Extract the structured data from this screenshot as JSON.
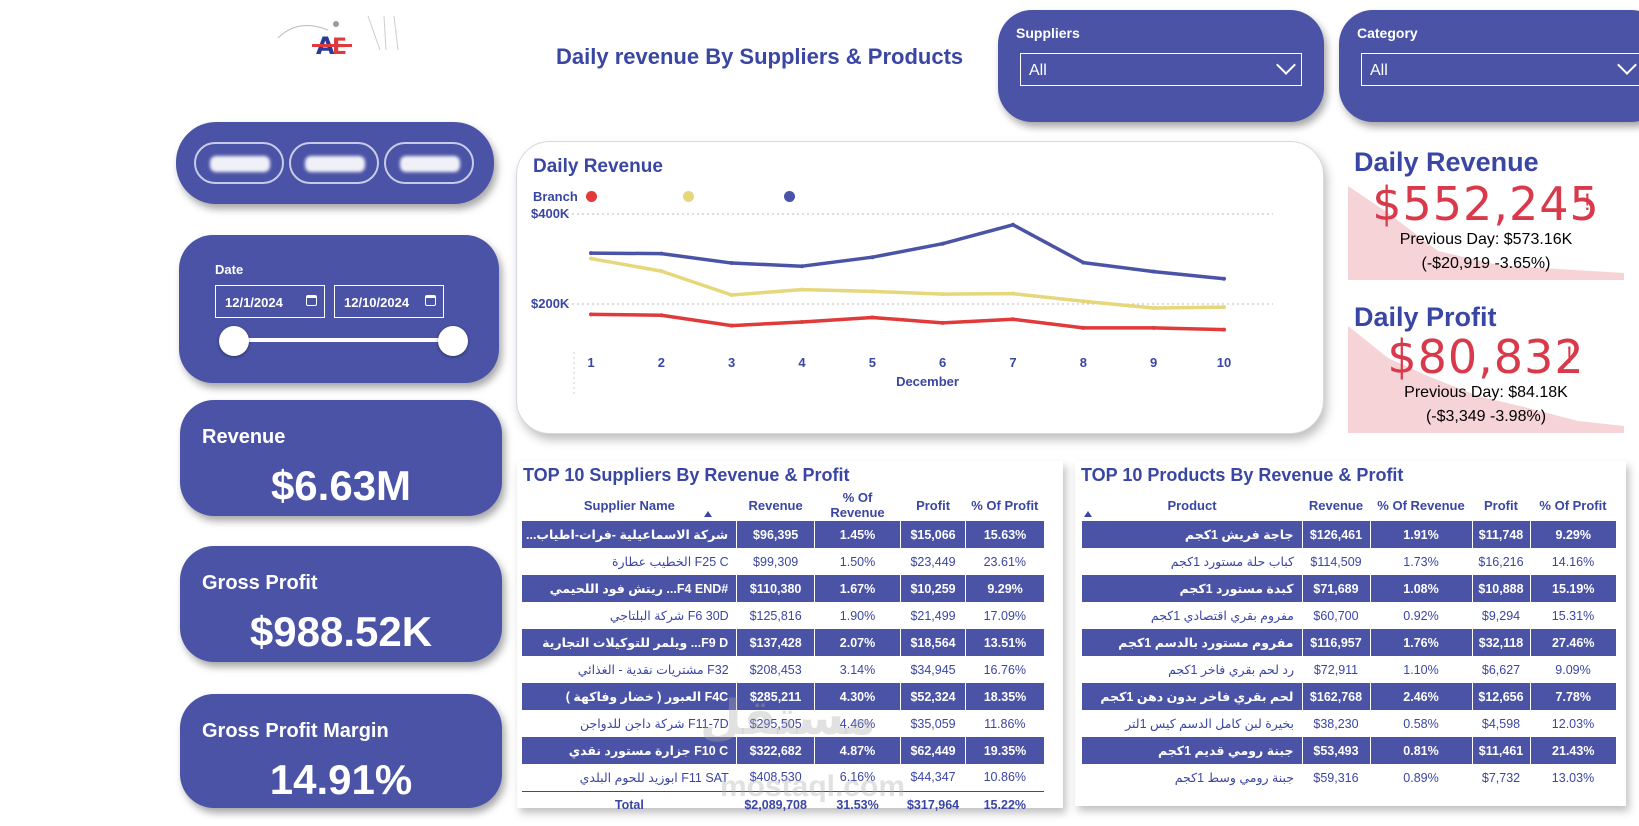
{
  "header": {
    "title": "Daily revenue By Suppliers & Products"
  },
  "filters": {
    "suppliers": {
      "label": "Suppliers",
      "value": "All"
    },
    "category": {
      "label": "Category",
      "value": "All"
    },
    "date": {
      "label": "Date",
      "start": "12/1/2024",
      "end": "12/10/2024",
      "slider_start": 0,
      "slider_end": 1
    }
  },
  "kpis": {
    "revenue": {
      "label": "Revenue",
      "value": "$6.63M"
    },
    "gross_profit": {
      "label": "Gross Profit",
      "value": "$988.52K"
    },
    "gross_profit_margin": {
      "label": "Gross Profit Margin",
      "value": "14.91%"
    }
  },
  "daily_revenue_card": {
    "title": "Daily Revenue",
    "value": "$552,245",
    "indicator": "!",
    "previous": "Previous Day: $573.16K",
    "change": "(-$20,919 -3.65%)"
  },
  "daily_profit_card": {
    "title": "Daily Profit",
    "value": "$80,832",
    "indicator": "!",
    "previous": "Previous Day: $84.18K",
    "change": "(-$3,349 -3.98%)"
  },
  "chart_data": {
    "type": "line",
    "title": "Daily Revenue",
    "legend_title": "Branch",
    "xlabel": "December",
    "ylabel": "",
    "x": [
      1,
      2,
      3,
      4,
      5,
      6,
      7,
      8,
      9,
      10
    ],
    "y_ticks": [
      "$200K",
      "$400K"
    ],
    "y_tick_values": [
      200000,
      400000
    ],
    "ylim": [
      0,
      420000
    ],
    "grid": true,
    "legend_position": "top-left",
    "series": [
      {
        "color": "#e03a3a",
        "values": [
          177000,
          175000,
          152000,
          160000,
          170000,
          158000,
          166000,
          147000,
          147000,
          143000
        ]
      },
      {
        "color": "#e6d77a",
        "values": [
          301000,
          273000,
          220000,
          232000,
          228000,
          222000,
          223000,
          206000,
          191000,
          193000
        ]
      },
      {
        "color": "#4a53a6",
        "values": [
          313000,
          312000,
          291000,
          284000,
          304000,
          334000,
          376000,
          292000,
          272000,
          256000
        ]
      }
    ]
  },
  "suppliers_table": {
    "title": "TOP 10 Suppliers By Revenue & Profit",
    "columns": [
      "Supplier Name",
      "Revenue",
      "% Of Revenue",
      "Profit",
      "% Of Profit"
    ],
    "rows": [
      [
        "شركة الاسماعيلية -فرات-اطياب...",
        "$96,395",
        "1.45%",
        "$15,066",
        "15.63%"
      ],
      [
        "F25 C الخطيب عطارة",
        "$99,309",
        "1.50%",
        "$23,449",
        "23.61%"
      ],
      [
        "#F4 END... ريتش فود اللحيمي",
        "$110,380",
        "1.67%",
        "$10,259",
        "9.29%"
      ],
      [
        "F6 30D شركة البلتاجي",
        "$125,816",
        "1.90%",
        "$21,499",
        "17.09%"
      ],
      [
        "F9 D... ويلمر للتوكيلات التجارية",
        "$137,428",
        "2.07%",
        "$18,564",
        "13.51%"
      ],
      [
        "F32 مشتريات نقدية - الغذائي",
        "$208,453",
        "3.14%",
        "$34,945",
        "16.76%"
      ],
      [
        "F4C العبور ( خضار وفاكهة )",
        "$285,211",
        "4.30%",
        "$52,324",
        "18.35%"
      ],
      [
        "F11-7D شركة داجن للدواجن",
        "$295,505",
        "4.46%",
        "$35,059",
        "11.86%"
      ],
      [
        "F10 C جزارة مستورد نقدي",
        "$322,682",
        "4.87%",
        "$62,449",
        "19.35%"
      ],
      [
        "F11 SAT ابوزيد للحوم البلدي",
        "$408,530",
        "6.16%",
        "$44,347",
        "10.86%"
      ]
    ],
    "total": [
      "Total",
      "$2,089,708",
      "31.53%",
      "$317,964",
      "15.22%"
    ]
  },
  "products_table": {
    "title": "TOP 10 Products By Revenue & Profit",
    "columns": [
      "Product",
      "Revenue",
      "% Of Revenue",
      "Profit",
      "% Of Profit"
    ],
    "rows": [
      [
        "جاجة فريش 1كجم",
        "$126,461",
        "1.91%",
        "$11,748",
        "9.29%"
      ],
      [
        "كباب حلة مستورد 1كجم",
        "$114,509",
        "1.73%",
        "$16,216",
        "14.16%"
      ],
      [
        "كبدة مستورد 1كجم",
        "$71,689",
        "1.08%",
        "$10,888",
        "15.19%"
      ],
      [
        "مفروم بقري اقتصادي 1كجم",
        "$60,700",
        "0.92%",
        "$9,294",
        "15.31%"
      ],
      [
        "مفروم مستورد بالدسم 1كجم",
        "$116,957",
        "1.76%",
        "$32,118",
        "27.46%"
      ],
      [
        "رد لحم بقري فاخر 1كجم",
        "$72,911",
        "1.10%",
        "$6,627",
        "9.09%"
      ],
      [
        "لحم بقري فاخر بدون دهن 1كجم",
        "$162,768",
        "2.46%",
        "$12,656",
        "7.78%"
      ],
      [
        "بخيرة لبن كامل الدسم كيس 1لتر",
        "$38,230",
        "0.58%",
        "$4,598",
        "12.03%"
      ],
      [
        "جبنة رومي قديم 1كجم",
        "$53,493",
        "0.81%",
        "$11,461",
        "21.43%"
      ],
      [
        "جبنة رومي وسط 1كجم",
        "$59,316",
        "0.89%",
        "$7,732",
        "13.03%"
      ]
    ]
  },
  "watermark": {
    "arabic": "مستقل",
    "latin": "mostaql.com"
  },
  "colors": {
    "primary": "#4a53a6",
    "title": "#3a46a3",
    "alert": "#d93a4b",
    "area": "#f6d3d7"
  }
}
